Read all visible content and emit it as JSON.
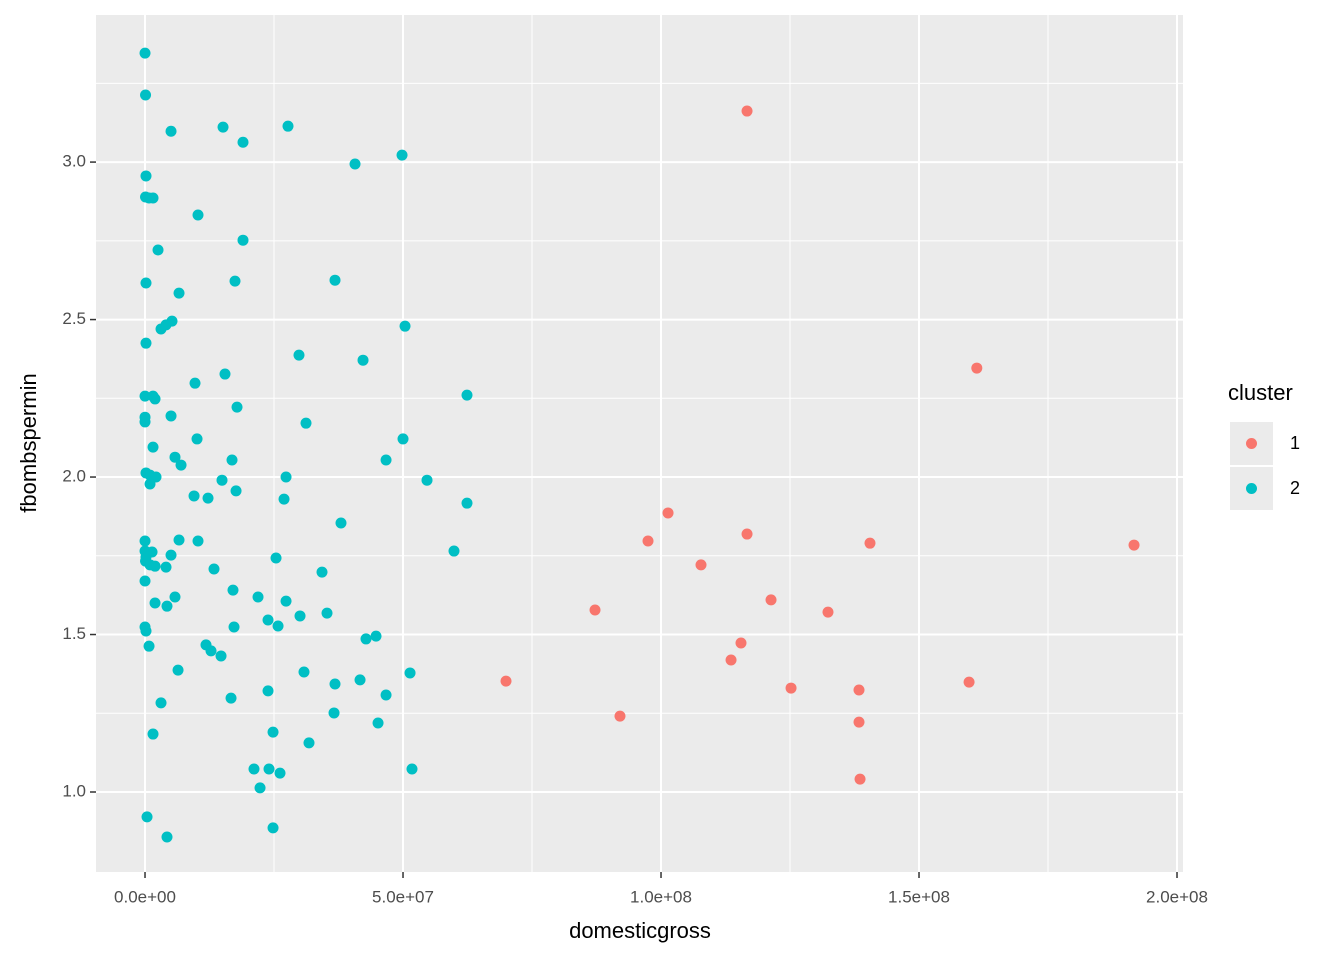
{
  "chart_data": {
    "type": "scatter",
    "x_label": "domesticgross",
    "y_label": "fbombspermin",
    "legend_title": "cluster",
    "legend_position": "right",
    "grid": true,
    "xlim": [
      -9500000,
      201160000
    ],
    "ylim": [
      0.746,
      3.467
    ],
    "xticks": [
      {
        "value": 0,
        "label": "0.0e+00"
      },
      {
        "value": 50000000,
        "label": "5.0e+07"
      },
      {
        "value": 100000000,
        "label": "1.0e+08"
      },
      {
        "value": 150000000,
        "label": "1.5e+08"
      },
      {
        "value": 200000000,
        "label": "2.0e+08"
      }
    ],
    "yticks": [
      {
        "value": 1,
        "label": "1.0"
      },
      1.5,
      {
        "value": 2,
        "label": "2.0"
      },
      2.5,
      {
        "value": 3,
        "label": "3.0"
      }
    ],
    "x_minor_breaks": [
      25000000,
      75000000,
      125000000,
      175000000
    ],
    "y_minor_breaks": [
      1.25,
      1.75,
      2.25,
      2.75,
      3.25
    ],
    "series": [
      {
        "name": "1",
        "color": "#F8766D",
        "x": [
          116670000,
          161200000,
          101360000,
          97480000,
          116670000,
          140500000,
          191670000,
          107750000,
          121320000,
          132360000,
          87210000,
          115500000,
          113570000,
          69960000,
          159700000,
          125200000,
          138370000,
          92050000,
          138370000,
          138570000
        ],
        "values": [
          3.162,
          2.346,
          1.886,
          1.797,
          1.819,
          1.79,
          1.784,
          1.721,
          1.61,
          1.571,
          1.578,
          1.473,
          1.419,
          1.352,
          1.349,
          1.33,
          1.324,
          1.241,
          1.222,
          1.041
        ]
      },
      {
        "name": "2",
        "color": "#00BFC4",
        "x": [
          0,
          100000,
          5040000,
          15120000,
          27710000,
          18990000,
          49810000,
          40700000,
          190000,
          100000,
          780000,
          1550000,
          10270000,
          18990000,
          2520000,
          36820000,
          17440000,
          190000,
          6590000,
          50390000,
          5230000,
          4070000,
          3100000,
          190000,
          29840000,
          42250000,
          15500000,
          9690000,
          0,
          1550000,
          1940000,
          62400000,
          17830000,
          5040000,
          0,
          0,
          31200000,
          10080000,
          50000000,
          1550000,
          5810000,
          16860000,
          46710000,
          6980000,
          190000,
          970000,
          2130000,
          27330000,
          970000,
          14920000,
          54650000,
          17640000,
          62400000,
          9500000,
          12210000,
          26940000,
          37980000,
          0,
          6590000,
          10270000,
          59880000,
          0,
          1360000,
          190000,
          5040000,
          25390000,
          100000,
          970000,
          1940000,
          4070000,
          13370000,
          34300000,
          0,
          17050000,
          5810000,
          21900000,
          27330000,
          1940000,
          4260000,
          35270000,
          30040000,
          23840000,
          25780000,
          17250000,
          0,
          190000,
          44770000,
          42830000,
          11820000,
          12790000,
          780000,
          14730000,
          6400000,
          30810000,
          51360000,
          41670000,
          36820000,
          23840000,
          46710000,
          16670000,
          3100000,
          36630000,
          45160000,
          24810000,
          1550000,
          31780000,
          21120000,
          24030000,
          51740000,
          26160000,
          22290000,
          390000,
          24810000,
          4260000
        ],
        "values": [
          3.346,
          3.213,
          3.098,
          3.111,
          3.114,
          3.063,
          3.022,
          2.994,
          2.956,
          2.889,
          2.886,
          2.886,
          2.832,
          2.752,
          2.721,
          2.625,
          2.622,
          2.616,
          2.584,
          2.479,
          2.495,
          2.483,
          2.47,
          2.425,
          2.387,
          2.371,
          2.327,
          2.298,
          2.257,
          2.257,
          2.248,
          2.26,
          2.222,
          2.194,
          2.19,
          2.175,
          2.171,
          2.121,
          2.121,
          2.095,
          2.063,
          2.054,
          2.054,
          2.038,
          2.013,
          2.006,
          2.0,
          2.0,
          1.978,
          1.99,
          1.99,
          1.956,
          1.917,
          1.94,
          1.933,
          1.93,
          1.854,
          1.797,
          1.8,
          1.797,
          1.765,
          1.765,
          1.762,
          1.746,
          1.752,
          1.743,
          1.733,
          1.721,
          1.717,
          1.714,
          1.708,
          1.698,
          1.67,
          1.641,
          1.619,
          1.619,
          1.606,
          1.6,
          1.59,
          1.568,
          1.559,
          1.546,
          1.527,
          1.524,
          1.524,
          1.511,
          1.495,
          1.486,
          1.467,
          1.448,
          1.463,
          1.432,
          1.387,
          1.381,
          1.378,
          1.356,
          1.343,
          1.321,
          1.308,
          1.298,
          1.283,
          1.251,
          1.219,
          1.19,
          1.184,
          1.156,
          1.073,
          1.073,
          1.073,
          1.06,
          1.013,
          0.921,
          0.886,
          0.857
        ]
      }
    ]
  }
}
